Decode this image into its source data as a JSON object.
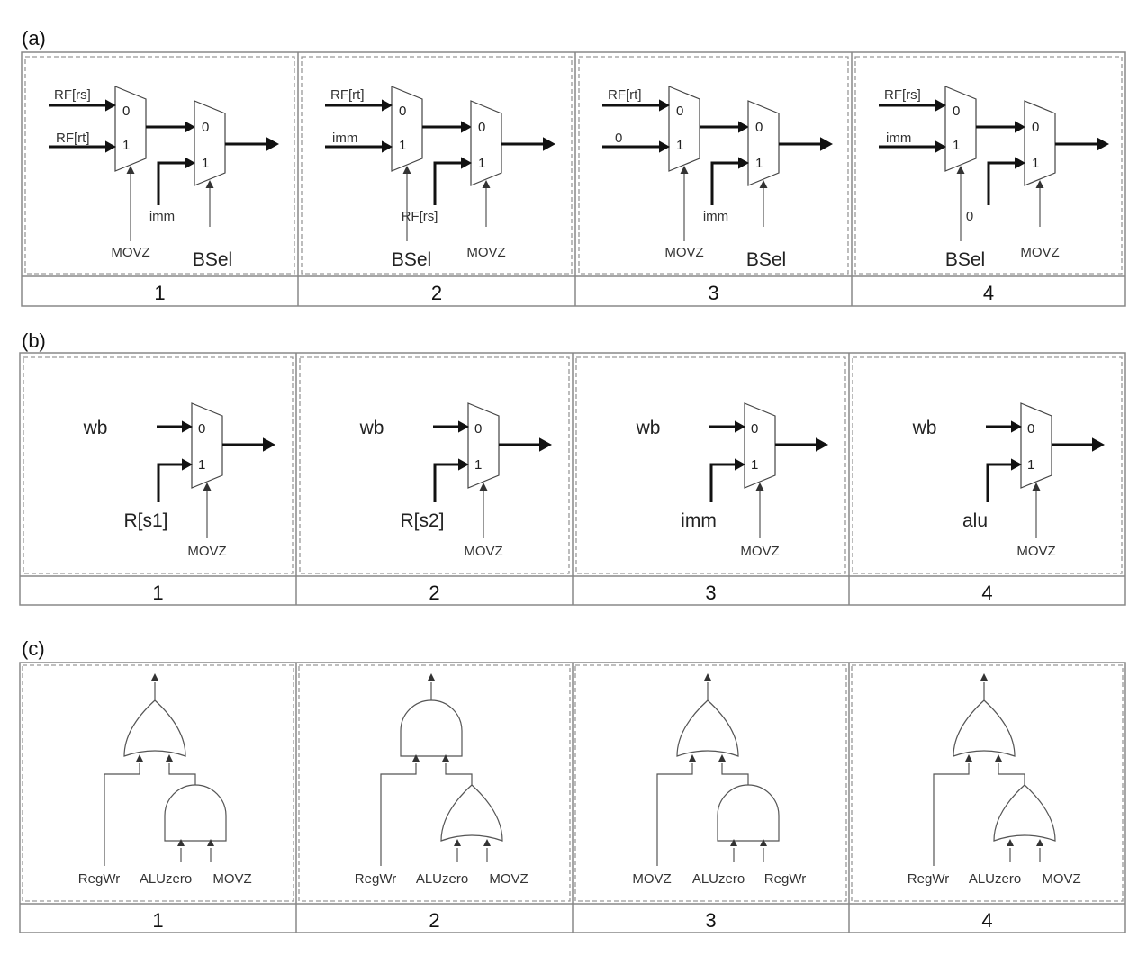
{
  "sections": [
    {
      "label": "(a)",
      "panels": [
        {
          "number": "1",
          "mux1_in0": "RF[rs]",
          "mux1_in1": "RF[rt]",
          "mux1_sel": "MOVZ",
          "mux2_in1": "imm",
          "mux2_sel": "BSel"
        },
        {
          "number": "2",
          "mux1_in0": "RF[rt]",
          "mux1_in1": "imm",
          "mux1_sel": "BSel",
          "mux2_in1": "RF[rs]",
          "mux2_sel": "MOVZ"
        },
        {
          "number": "3",
          "mux1_in0": "RF[rt]",
          "mux1_in1": "0",
          "mux1_sel": "MOVZ",
          "mux2_in1": "imm",
          "mux2_sel": "BSel"
        },
        {
          "number": "4",
          "mux1_in0": "RF[rs]",
          "mux1_in1": "imm",
          "mux1_sel": "BSel",
          "mux2_in1": "0",
          "mux2_sel": "MOVZ"
        }
      ]
    },
    {
      "label": "(b)",
      "panels": [
        {
          "number": "1",
          "in0": "wb",
          "in1": "R[s1]",
          "sel": "MOVZ"
        },
        {
          "number": "2",
          "in0": "wb",
          "in1": "R[s2]",
          "sel": "MOVZ"
        },
        {
          "number": "3",
          "in0": "wb",
          "in1": "imm",
          "sel": "MOVZ"
        },
        {
          "number": "4",
          "in0": "wb",
          "in1": "alu",
          "sel": "MOVZ"
        }
      ]
    },
    {
      "label": "(c)",
      "panels": [
        {
          "number": "1",
          "top_gate": "or",
          "bottom_gate": "and",
          "inputs": [
            "RegWr",
            "ALUzero",
            "MOVZ"
          ]
        },
        {
          "number": "2",
          "top_gate": "and",
          "bottom_gate": "or",
          "inputs": [
            "RegWr",
            "ALUzero",
            "MOVZ"
          ]
        },
        {
          "number": "3",
          "top_gate": "or",
          "bottom_gate": "and",
          "inputs": [
            "MOVZ",
            "ALUzero",
            "RegWr"
          ]
        },
        {
          "number": "4",
          "top_gate": "or",
          "bottom_gate": "or",
          "inputs": [
            "RegWr",
            "ALUzero",
            "MOVZ"
          ]
        }
      ]
    }
  ],
  "mux_port_0": "0",
  "mux_port_1": "1"
}
